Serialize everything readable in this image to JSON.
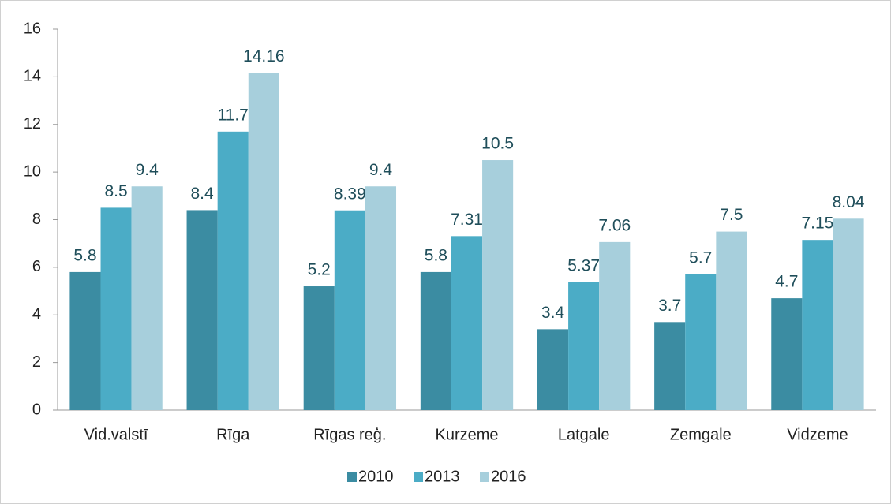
{
  "chart_data": {
    "type": "bar",
    "categories": [
      "Vid.valstī",
      "Rīga",
      "Rīgas reģ.",
      "Kurzeme",
      "Latgale",
      "Zemgale",
      "Vidzeme"
    ],
    "series": [
      {
        "name": "2010",
        "color": "#3b8ca2",
        "values": [
          5.8,
          8.4,
          5.2,
          5.8,
          3.4,
          3.7,
          4.7
        ]
      },
      {
        "name": "2013",
        "color": "#4bacc6",
        "values": [
          8.5,
          11.7,
          8.39,
          7.31,
          5.37,
          5.7,
          7.15
        ]
      },
      {
        "name": "2016",
        "color": "#a7cfdc",
        "values": [
          9.4,
          14.16,
          9.4,
          10.5,
          7.06,
          7.5,
          8.04
        ]
      }
    ],
    "ylim": [
      0,
      16
    ],
    "yticks": [
      0,
      2,
      4,
      6,
      8,
      10,
      12,
      14,
      16
    ],
    "grid": false,
    "legend": "bottom"
  }
}
